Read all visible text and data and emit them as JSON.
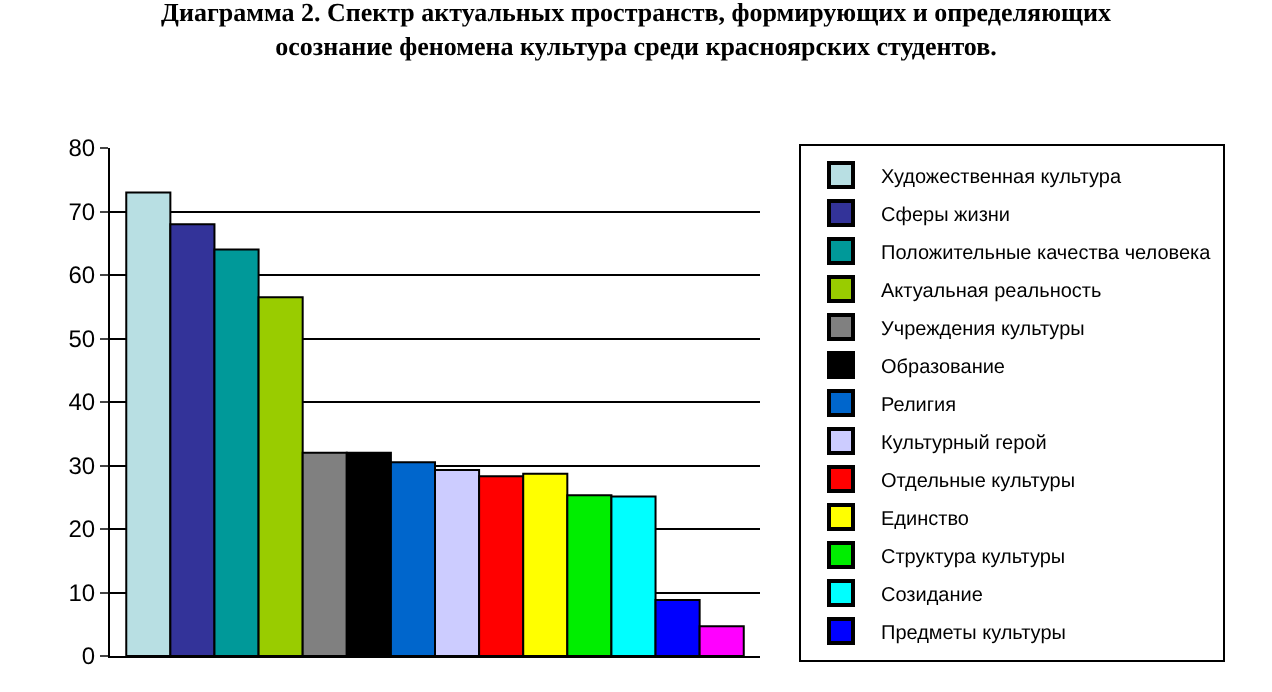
{
  "chart_data": {
    "type": "bar",
    "title": "Диаграмма 2. Спектр актуальных пространств, формирующих и определяющих\nосознание феномена культура среди красноярских студентов.",
    "categories": [
      null
    ],
    "series": [
      {
        "name": "Художественная культура",
        "color": "#b8dfe3",
        "values": [
          73
        ]
      },
      {
        "name": "Сферы жизни",
        "color": "#333399",
        "values": [
          68
        ]
      },
      {
        "name": "Положительные качества человека",
        "color": "#009999",
        "values": [
          64
        ]
      },
      {
        "name": "Актуальная реальность",
        "color": "#99cc00",
        "values": [
          56.5
        ]
      },
      {
        "name": "Учреждения культуры",
        "color": "#808080",
        "values": [
          32
        ]
      },
      {
        "name": "Образование",
        "color": "#000000",
        "values": [
          32
        ]
      },
      {
        "name": "Религия",
        "color": "#0066cc",
        "values": [
          30.5
        ]
      },
      {
        "name": "Культурный герой",
        "color": "#ccccff",
        "values": [
          29.3
        ]
      },
      {
        "name": "Отдельные культуры",
        "color": "#ff0000",
        "values": [
          28.3
        ]
      },
      {
        "name": "Единство",
        "color": "#ffff00",
        "values": [
          28.7
        ]
      },
      {
        "name": "Структура культуры",
        "color": "#00ee00",
        "values": [
          25.3
        ]
      },
      {
        "name": "Созидание",
        "color": "#00ffff",
        "values": [
          25.1
        ]
      },
      {
        "name": "Предметы культуры",
        "color": "#0000ff",
        "values": [
          8.8
        ]
      },
      {
        "color": "#ff00ff",
        "values": [
          4.7
        ]
      }
    ],
    "ylim": [
      0,
      80
    ],
    "yticks": [
      0,
      10,
      20,
      30,
      40,
      50,
      60,
      70,
      80
    ],
    "grid": "y",
    "legend": "right"
  }
}
